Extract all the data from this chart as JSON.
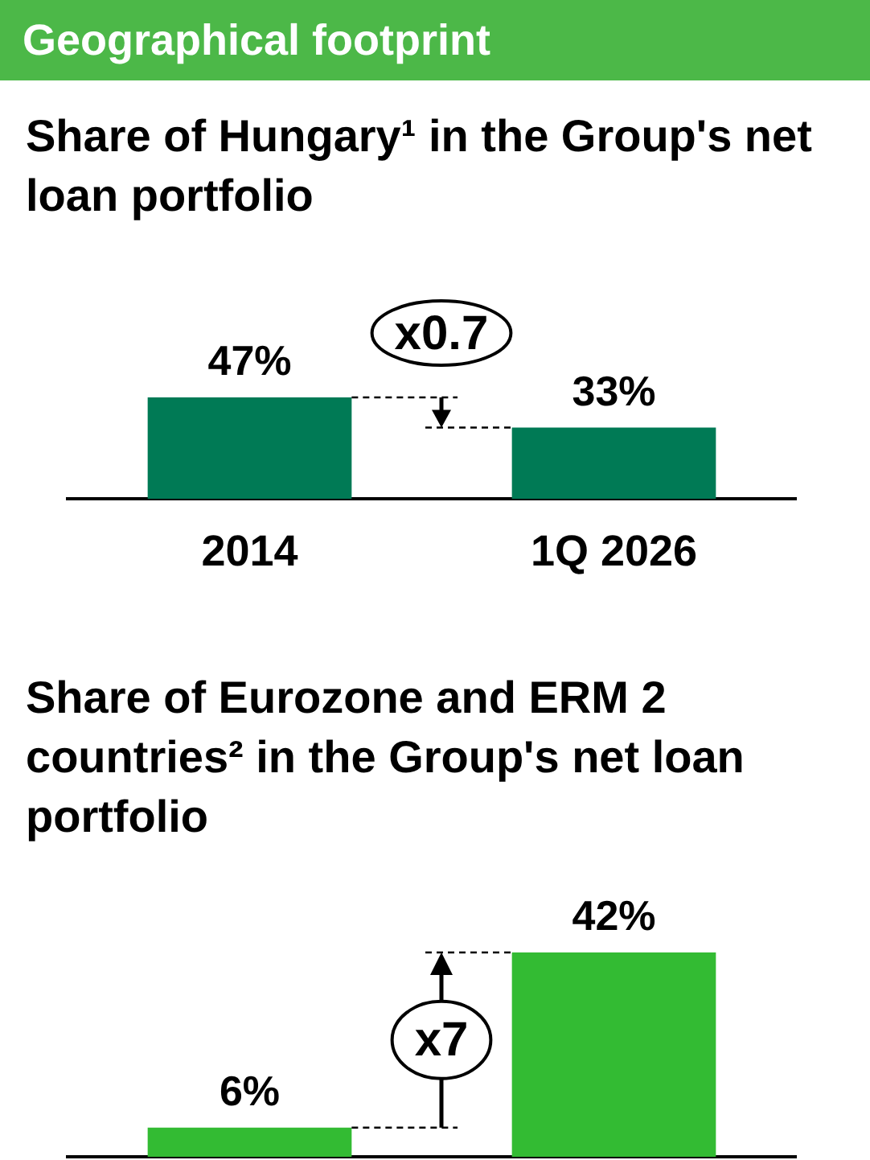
{
  "chart_data": [
    {
      "type": "bar",
      "title": "Geographical footprint",
      "subtitle": "Share of Hungary¹ in the Group's net loan portfolio",
      "categories": [
        "2014",
        "1Q 2026"
      ],
      "values": [
        47,
        33
      ],
      "value_labels": [
        "47%",
        "33%"
      ],
      "color": "#007a55",
      "legend": false,
      "tick_labels": "x",
      "annotations": [
        "x0.7"
      ]
    },
    {
      "type": "bar",
      "title": "Share of Eurozone and ERM 2 countries² in the Group's net loan portfolio",
      "categories": [
        null,
        null
      ],
      "values": [
        6,
        42
      ],
      "value_labels": [
        "6%",
        "42%"
      ],
      "color": "#33bb33",
      "legend": false,
      "tick_labels": false,
      "annotations": [
        "x7"
      ]
    }
  ]
}
